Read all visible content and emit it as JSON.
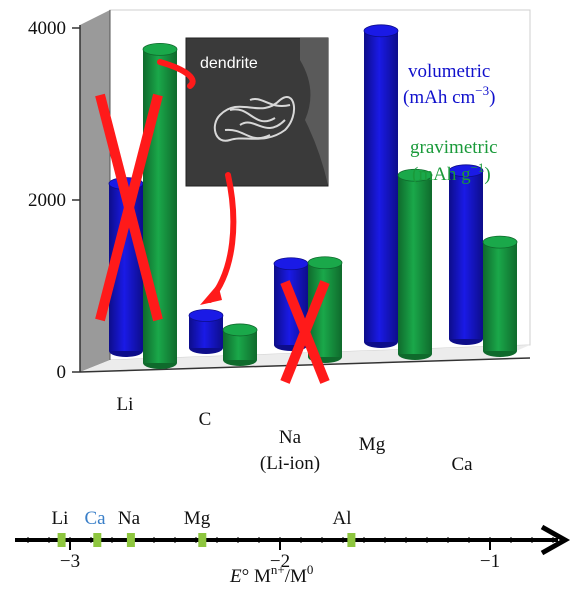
{
  "chart_data": {
    "type": "bar",
    "title": "",
    "ylim": [
      0,
      4000
    ],
    "y_ticks": [
      "0",
      "2000",
      "4000"
    ],
    "categories": [
      {
        "label": "Li",
        "sublabel": ""
      },
      {
        "label": "C",
        "sublabel": ""
      },
      {
        "label": "Na",
        "sublabel": "(Li-ion)"
      },
      {
        "label": "Mg",
        "sublabel": ""
      },
      {
        "label": "Ca",
        "sublabel": ""
      }
    ],
    "series": [
      {
        "name_line1": "volumetric",
        "name_line2": "(mAh cm",
        "name_sup": "−3",
        "color": "#1a1ae6",
        "values": [
          2060,
          400,
          1000,
          3830,
          2070
        ]
      },
      {
        "name_line1": "gravimetric",
        "name_line2": "(mAh g",
        "name_sup": "−1",
        "color": "#1aa84a",
        "values": [
          3860,
          370,
          1160,
          2200,
          1340
        ]
      }
    ],
    "crossed_out": [
      "Li",
      "Na"
    ],
    "inset_label": "dendrite",
    "potential_axis": {
      "title_prefix": "E",
      "title_rest": "° M",
      "title_sup": "n+",
      "title_tail": "/M",
      "title_sup2": "0",
      "ticks": [
        -3,
        -2,
        -1
      ],
      "tick_labels": [
        "−3",
        "−2",
        "−1"
      ],
      "min": -3.2,
      "max": -0.5,
      "markers": [
        {
          "label": "Li",
          "value": -3.04,
          "color": "#111111"
        },
        {
          "label": "Ca",
          "value": -2.87,
          "color": "#3a7fc8"
        },
        {
          "label": "Na",
          "value": -2.71,
          "color": "#111111"
        },
        {
          "label": "Mg",
          "value": -2.37,
          "color": "#111111"
        },
        {
          "label": "Al",
          "value": -1.66,
          "color": "#111111"
        }
      ],
      "marker_color": "#8ec63f"
    },
    "colors": {
      "cross": "#ff1a1a",
      "wall": "#8a8a8a",
      "floor": "#e8e8e8"
    }
  }
}
